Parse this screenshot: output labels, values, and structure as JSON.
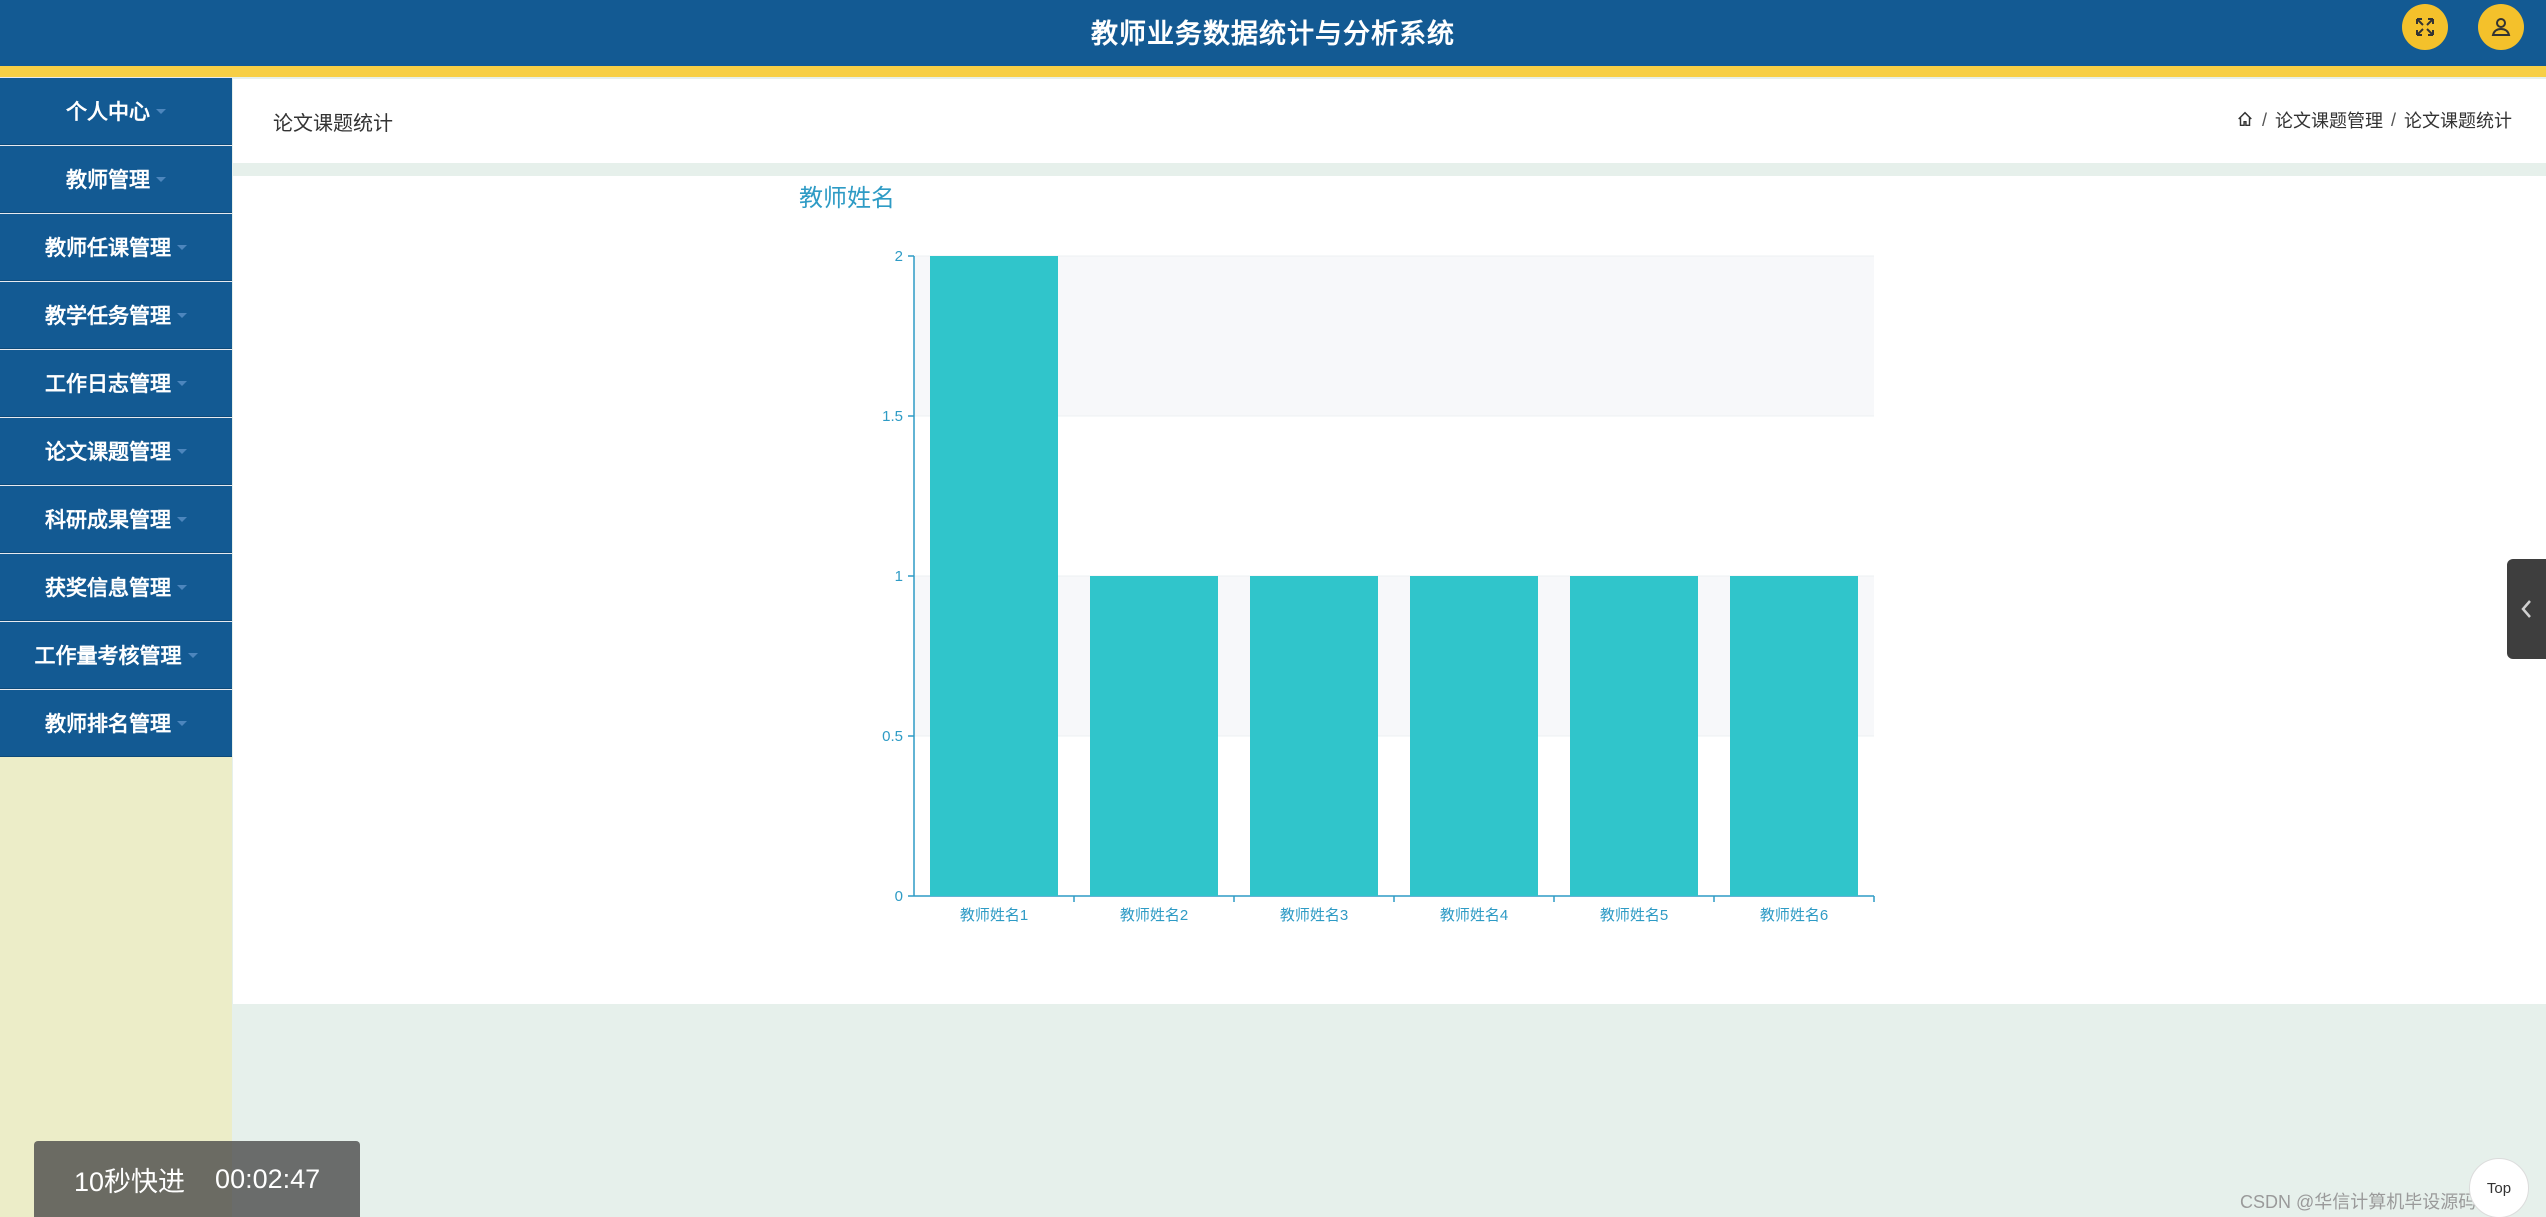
{
  "header": {
    "title": "教师业务数据统计与分析系统",
    "colors": {
      "bar": "#135a93",
      "stripe": "#f7cf45",
      "button": "#f4c12b"
    },
    "icons": [
      "fullscreen-icon",
      "user-icon"
    ]
  },
  "sidebar": {
    "items": [
      {
        "label": "个人中心"
      },
      {
        "label": "教师管理"
      },
      {
        "label": "教师任课管理"
      },
      {
        "label": "教学任务管理"
      },
      {
        "label": "工作日志管理"
      },
      {
        "label": "论文课题管理"
      },
      {
        "label": "科研成果管理"
      },
      {
        "label": "获奖信息管理"
      },
      {
        "label": "工作量考核管理"
      },
      {
        "label": "教师排名管理"
      }
    ]
  },
  "page": {
    "heading": "论文课题统计",
    "breadcrumb": [
      "论文课题管理",
      "论文课题统计"
    ],
    "breadcrumb_separator": "/"
  },
  "chart_data": {
    "type": "bar",
    "title": "教师姓名",
    "categories": [
      "教师姓名1",
      "教师姓名2",
      "教师姓名3",
      "教师姓名4",
      "教师姓名5",
      "教师姓名6"
    ],
    "values": [
      2,
      1,
      1,
      1,
      1,
      1
    ],
    "ylim": [
      0,
      2
    ],
    "yticks": [
      "0",
      "0.5",
      "1",
      "1.5",
      "2"
    ],
    "grid": true,
    "colors": {
      "bar": "#30c5cb",
      "axis": "#2e9bc5",
      "band": "#f7f8fa"
    }
  },
  "overlay": {
    "fast_forward": "10秒快进",
    "time": "00:02:47",
    "top_button": "Top",
    "watermark": "CSDN @华信计算机毕设源码程序"
  }
}
